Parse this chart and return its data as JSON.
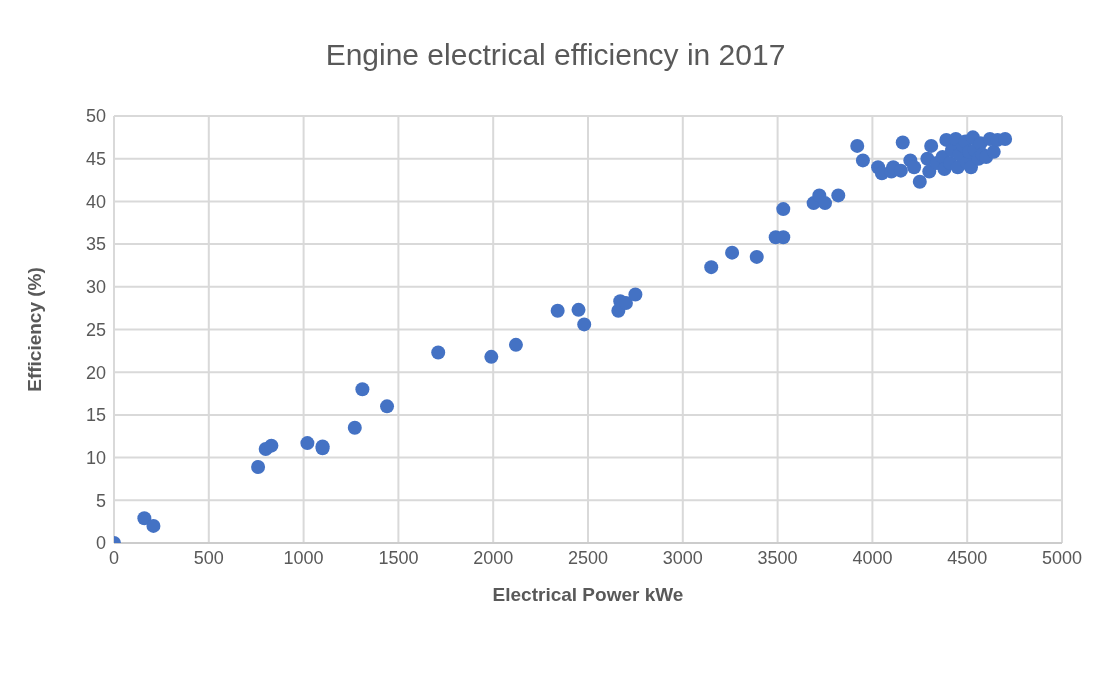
{
  "chart_data": {
    "type": "scatter",
    "title": "Engine electrical efficiency in 2017",
    "xlabel": "Electrical Power kWe",
    "ylabel": "Efficiency (%)",
    "xlim": [
      0,
      5000
    ],
    "xticks": [
      0,
      500,
      1000,
      1500,
      2000,
      2500,
      3000,
      3500,
      4000,
      4500,
      5000
    ],
    "ylim": [
      0,
      50
    ],
    "yticks": [
      0,
      5,
      10,
      15,
      20,
      25,
      30,
      35,
      40,
      45,
      50
    ],
    "grid": true,
    "marker": "circle",
    "color": "#4472c4",
    "x": [
      0,
      160,
      208,
      760,
      800,
      830,
      1020,
      1100,
      1100,
      1270,
      1310,
      1440,
      1710,
      1990,
      2120,
      2340,
      2450,
      2480,
      2660,
      2670,
      2700,
      2750,
      3150,
      3260,
      3390,
      3490,
      3530,
      3530,
      3690,
      3720,
      3750,
      3820,
      3920,
      3950,
      4030,
      4050,
      4100,
      4110,
      4160,
      4150,
      4200,
      4220,
      4250,
      4290,
      4300,
      4310,
      4340,
      4370,
      4380,
      4390,
      4410,
      4420,
      4440,
      4450,
      4460,
      4480,
      4490,
      4500,
      4510,
      4520,
      4530,
      4540,
      4560,
      4570,
      4580,
      4600,
      4620,
      4640,
      4660,
      4700
    ],
    "values": [
      0,
      2.9,
      2,
      8.9,
      11,
      11.4,
      11.7,
      11.1,
      11.3,
      13.5,
      18,
      16,
      22.3,
      21.8,
      23.2,
      27.2,
      27.3,
      25.6,
      27.2,
      28.3,
      28.1,
      29.1,
      32.3,
      34,
      33.5,
      35.8,
      35.8,
      39.1,
      39.8,
      40.7,
      39.8,
      40.7,
      46.5,
      44.8,
      44,
      43.3,
      43.5,
      44,
      46.9,
      43.6,
      44.8,
      44,
      42.3,
      45,
      43.5,
      46.5,
      44.5,
      45.2,
      43.8,
      47.2,
      44.5,
      46,
      47.3,
      44,
      45.5,
      46.5,
      47,
      44.5,
      45.8,
      44,
      47.5,
      46,
      45,
      46.8,
      45.5,
      45.2,
      47.3,
      45.8,
      47.2,
      47.3
    ]
  }
}
